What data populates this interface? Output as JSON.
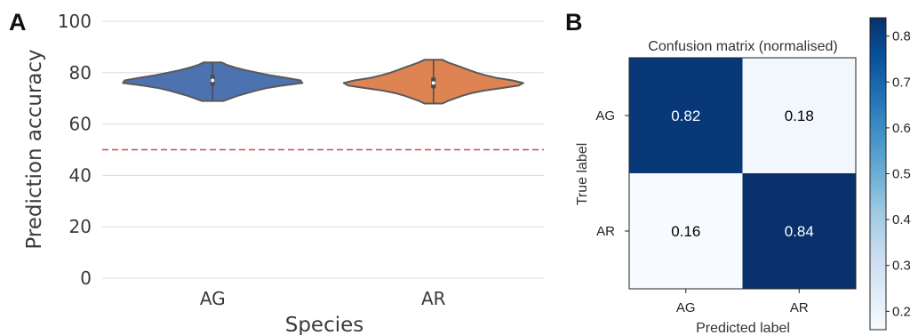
{
  "panels": {
    "a": "A",
    "b": "B"
  },
  "chart_data": [
    {
      "type": "violin",
      "xlabel": "Species",
      "ylabel": "Prediction accuracy",
      "ylim": [
        0,
        100
      ],
      "yticks": [
        0,
        20,
        40,
        60,
        80,
        100
      ],
      "grid": true,
      "categories": [
        "AG",
        "AR"
      ],
      "colors": [
        "#4c72b0",
        "#dd8452"
      ],
      "series": [
        {
          "category": "AG",
          "min": 69,
          "max": 84,
          "median": 77,
          "density": [
            [
              69,
              0.12
            ],
            [
              70,
              0.2
            ],
            [
              71,
              0.28
            ],
            [
              72,
              0.38
            ],
            [
              73,
              0.48
            ],
            [
              74,
              0.6
            ],
            [
              75,
              0.78
            ],
            [
              76,
              1.0
            ],
            [
              77,
              0.98
            ],
            [
              78,
              0.82
            ],
            [
              79,
              0.64
            ],
            [
              80,
              0.5
            ],
            [
              81,
              0.36
            ],
            [
              82,
              0.25
            ],
            [
              83,
              0.16
            ],
            [
              84,
              0.1
            ]
          ]
        },
        {
          "category": "AR",
          "min": 68,
          "max": 85,
          "median": 76,
          "density": [
            [
              68,
              0.1
            ],
            [
              69,
              0.16
            ],
            [
              70,
              0.24
            ],
            [
              71,
              0.32
            ],
            [
              72,
              0.42
            ],
            [
              73,
              0.56
            ],
            [
              74,
              0.76
            ],
            [
              75,
              0.95
            ],
            [
              76,
              1.0
            ],
            [
              77,
              0.88
            ],
            [
              78,
              0.7
            ],
            [
              79,
              0.58
            ],
            [
              80,
              0.48
            ],
            [
              81,
              0.4
            ],
            [
              82,
              0.32
            ],
            [
              83,
              0.24
            ],
            [
              84,
              0.16
            ],
            [
              85,
              0.1
            ]
          ]
        }
      ],
      "reference_line": {
        "y": 50,
        "color": "#c44e52",
        "style": "dashed"
      }
    },
    {
      "type": "heatmap",
      "title": "Confusion matrix (normalised)",
      "xlabel": "Predicted label",
      "ylabel": "True label",
      "x_categories": [
        "AG",
        "AR"
      ],
      "y_categories": [
        "AG",
        "AR"
      ],
      "values": [
        [
          0.82,
          0.18
        ],
        [
          0.16,
          0.84
        ]
      ],
      "value_labels": [
        [
          "0.82",
          "0.18"
        ],
        [
          "0.16",
          "0.84"
        ]
      ],
      "colormap": "Blues",
      "colorbar": {
        "min": 0.16,
        "max": 0.84,
        "ticks": [
          0.2,
          0.3,
          0.4,
          0.5,
          0.6,
          0.7,
          0.8
        ],
        "tick_labels": [
          "0.2",
          "0.3",
          "0.4",
          "0.5",
          "0.6",
          "0.7",
          "0.8"
        ]
      }
    }
  ]
}
